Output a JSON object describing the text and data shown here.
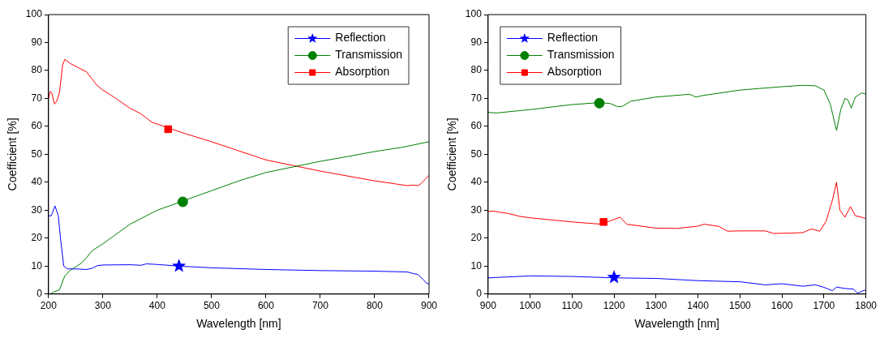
{
  "chart_data": [
    {
      "type": "line",
      "xlabel": "Wavelength [nm]",
      "ylabel": "Coefficient [%]",
      "xlim": [
        200,
        900
      ],
      "ylim": [
        0,
        100
      ],
      "xticks": [
        200,
        300,
        400,
        500,
        600,
        700,
        800,
        900
      ],
      "yticks": [
        0,
        10,
        20,
        30,
        40,
        50,
        60,
        70,
        80,
        90,
        100
      ],
      "grid": false,
      "legend": "top right",
      "line_style": "solid",
      "series": [
        {
          "name": "Reflection",
          "color": "#0000ff",
          "marker": "none",
          "x": [
            200,
            205,
            212,
            218,
            222,
            228,
            235,
            250,
            270,
            280,
            290,
            300,
            350,
            370,
            380,
            400,
            440,
            500,
            600,
            700,
            800,
            860,
            870,
            880,
            890,
            895,
            900
          ],
          "values": [
            28,
            28,
            31.5,
            28,
            20,
            10,
            9,
            9,
            8.8,
            9.2,
            10.2,
            10.4,
            10.5,
            10.3,
            10.8,
            10.6,
            10,
            9.4,
            8.8,
            8.4,
            8.2,
            7.9,
            7.4,
            7,
            5,
            4,
            3.5
          ]
        },
        {
          "name": "Transmission",
          "color": "#008000",
          "marker": "none",
          "x": [
            203,
            210,
            220,
            225,
            230,
            240,
            260,
            270,
            280,
            300,
            320,
            350,
            400,
            450,
            500,
            550,
            600,
            650,
            700,
            750,
            800,
            850,
            900
          ],
          "values": [
            0,
            0.8,
            1.5,
            4,
            6.5,
            8.5,
            11,
            13,
            15.5,
            18,
            20.8,
            25,
            30,
            33.5,
            37,
            40.5,
            43.5,
            45.5,
            47.5,
            49.2,
            51,
            52.5,
            54.5
          ]
        },
        {
          "name": "Absorption",
          "color": "#ff0000",
          "marker": "none",
          "x": [
            200,
            203,
            206,
            211,
            215,
            220,
            226,
            230,
            240,
            260,
            270,
            280,
            290,
            300,
            320,
            350,
            370,
            380,
            390,
            420,
            450,
            500,
            600,
            650,
            700,
            800,
            860,
            870,
            880,
            885,
            890,
            900
          ],
          "values": [
            70,
            72.5,
            72,
            68,
            69,
            72,
            82,
            84,
            82.5,
            80.5,
            79.5,
            77,
            74.5,
            73,
            70.5,
            66.5,
            64.5,
            63,
            61.5,
            59.5,
            57.5,
            54.5,
            48,
            46,
            44,
            40.5,
            38.8,
            39,
            38.8,
            39.5,
            40.5,
            42.5
          ]
        },
        {
          "type": "scatter",
          "color": "#0000ff",
          "marker": "star",
          "x": [
            440
          ],
          "values": [
            10
          ]
        },
        {
          "type": "scatter",
          "color": "#008000",
          "marker": "circle",
          "x": [
            447
          ],
          "values": [
            33
          ]
        },
        {
          "type": "scatter",
          "color": "#ff0000",
          "marker": "square",
          "x": [
            420
          ],
          "values": [
            59
          ]
        }
      ]
    },
    {
      "type": "line",
      "xlabel": "Wavelength [nm]",
      "ylabel": "Coefficient [%]",
      "xlim": [
        900,
        1800
      ],
      "ylim": [
        0,
        100
      ],
      "xticks": [
        900,
        1000,
        1100,
        1200,
        1300,
        1400,
        1500,
        1600,
        1700,
        1800
      ],
      "yticks": [
        0,
        10,
        20,
        30,
        40,
        50,
        60,
        70,
        80,
        90,
        100
      ],
      "grid": false,
      "legend": "top left",
      "line_style": "solid",
      "series": [
        {
          "name": "Reflection",
          "color": "#0000ff",
          "marker": "none",
          "x": [
            900,
            1000,
            1100,
            1200,
            1300,
            1400,
            1500,
            1560,
            1600,
            1650,
            1680,
            1700,
            1720,
            1730,
            1750,
            1770,
            1780,
            1790,
            1800
          ],
          "values": [
            5.8,
            6.5,
            6.3,
            5.8,
            5.6,
            4.8,
            4.4,
            3.3,
            3.7,
            2.8,
            3.3,
            2.4,
            1.2,
            2.5,
            2,
            1.8,
            0.3,
            1,
            1.5
          ]
        },
        {
          "name": "Transmission",
          "color": "#008000",
          "marker": "none",
          "x": [
            900,
            920,
            1000,
            1100,
            1165,
            1190,
            1210,
            1220,
            1240,
            1300,
            1380,
            1395,
            1410,
            1500,
            1600,
            1650,
            1680,
            1700,
            1715,
            1730,
            1740,
            1750,
            1757,
            1765,
            1775,
            1790,
            1800
          ],
          "values": [
            65,
            64.8,
            66,
            67.8,
            68.5,
            68.2,
            67,
            67.2,
            69,
            70.5,
            71.5,
            70.5,
            71,
            73,
            74.2,
            74.7,
            74.5,
            73,
            68,
            58.5,
            66,
            70,
            69.5,
            66.5,
            70.5,
            72,
            71.5
          ]
        },
        {
          "name": "Absorption",
          "color": "#ff0000",
          "marker": "none",
          "x": [
            900,
            910,
            950,
            975,
            1000,
            1100,
            1170,
            1200,
            1215,
            1230,
            1300,
            1350,
            1400,
            1415,
            1450,
            1470,
            1500,
            1560,
            1580,
            1620,
            1650,
            1670,
            1690,
            1705,
            1720,
            1730,
            1738,
            1750,
            1763,
            1775,
            1790,
            1800
          ],
          "values": [
            29.5,
            29.7,
            28.8,
            27.8,
            27.3,
            25.8,
            25,
            26.7,
            27.5,
            25,
            23.6,
            23.5,
            24.3,
            25,
            24.2,
            22.5,
            22.6,
            22.6,
            21.7,
            21.8,
            22,
            23.3,
            22.5,
            26,
            33.5,
            40,
            30,
            27.5,
            31.3,
            28,
            27.5,
            27
          ]
        },
        {
          "type": "scatter",
          "color": "#0000ff",
          "marker": "star",
          "x": [
            1200
          ],
          "values": [
            6
          ]
        },
        {
          "type": "scatter",
          "color": "#008000",
          "marker": "circle",
          "x": [
            1165
          ],
          "values": [
            68.3
          ]
        },
        {
          "type": "scatter",
          "color": "#ff0000",
          "marker": "square",
          "x": [
            1175
          ],
          "values": [
            25.8
          ]
        }
      ]
    }
  ]
}
